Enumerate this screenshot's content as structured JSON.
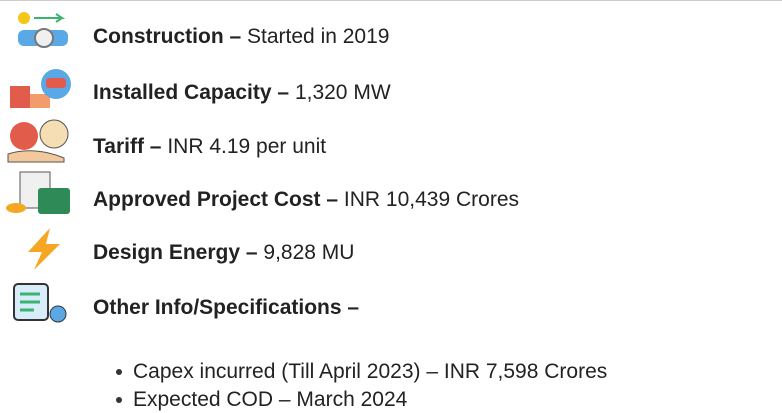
{
  "items": [
    {
      "label": "Construction",
      "separator": "–",
      "value": "Started in 2019"
    },
    {
      "label": "Installed Capacity",
      "separator": "–",
      "value": "1,320 MW"
    },
    {
      "label": "Tariff",
      "separator": "–",
      "value": "INR 4.19 per unit"
    },
    {
      "label": "Approved Project Cost",
      "separator": "–",
      "value": "INR 10,439 Crores"
    },
    {
      "label": "Design Energy",
      "separator": "–",
      "value": "9,828 MU"
    },
    {
      "label": "Other Info/Specifications",
      "separator": "–",
      "value": null
    }
  ],
  "bullets": [
    "Capex incurred (Till April 2023) – INR 7,598 Crores",
    "Expected COD – March 2024"
  ]
}
